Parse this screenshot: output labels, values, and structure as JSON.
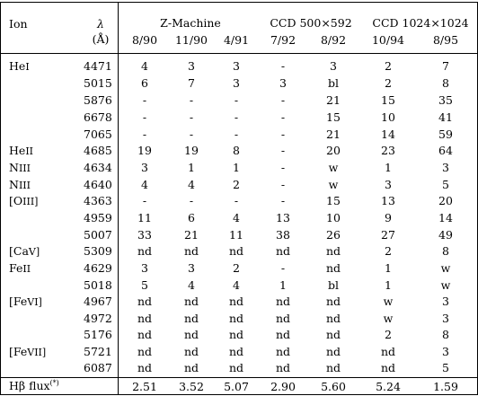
{
  "header": {
    "ion_label": "Ion",
    "lambda_symbol": "λ",
    "lambda_unit": "(Å)",
    "group_zmachine": "Z-Machine",
    "group_ccd500": "CCD 500×592",
    "group_ccd1024": "CCD 1024×1024",
    "dates": [
      "8/90",
      "11/90",
      "4/91",
      "7/92",
      "8/92",
      "10/94",
      "8/95"
    ]
  },
  "rows": [
    {
      "ion": "He",
      "ion_sc": "I",
      "wl": "4471",
      "vals": [
        "4",
        "3",
        "3",
        "-",
        "3",
        "2",
        "7"
      ]
    },
    {
      "ion": "",
      "ion_sc": "",
      "wl": "5015",
      "vals": [
        "6",
        "7",
        "3",
        "3",
        "bl",
        "2",
        "8"
      ]
    },
    {
      "ion": "",
      "ion_sc": "",
      "wl": "5876",
      "vals": [
        "-",
        "-",
        "-",
        "-",
        "21",
        "15",
        "35"
      ]
    },
    {
      "ion": "",
      "ion_sc": "",
      "wl": "6678",
      "vals": [
        "-",
        "-",
        "-",
        "-",
        "15",
        "10",
        "41"
      ]
    },
    {
      "ion": "",
      "ion_sc": "",
      "wl": "7065",
      "vals": [
        "-",
        "-",
        "-",
        "-",
        "21",
        "14",
        "59"
      ]
    },
    {
      "ion": "He",
      "ion_sc": "II",
      "wl": "4685",
      "vals": [
        "19",
        "19",
        "8",
        "-",
        "20",
        "23",
        "64"
      ]
    },
    {
      "ion": "N",
      "ion_sc": "III",
      "wl": "4634",
      "vals": [
        "3",
        "1",
        "1",
        "-",
        "w",
        "1",
        "3"
      ]
    },
    {
      "ion": "N",
      "ion_sc": "III",
      "wl": "4640",
      "vals": [
        "4",
        "4",
        "2",
        "-",
        "w",
        "3",
        "5"
      ]
    },
    {
      "ion": "[O",
      "ion_sc": "III]",
      "wl": "4363",
      "vals": [
        "-",
        "-",
        "-",
        "-",
        "15",
        "13",
        "20"
      ]
    },
    {
      "ion": "",
      "ion_sc": "",
      "wl": "4959",
      "vals": [
        "11",
        "6",
        "4",
        "13",
        "10",
        "9",
        "14"
      ]
    },
    {
      "ion": "",
      "ion_sc": "",
      "wl": "5007",
      "vals": [
        "33",
        "21",
        "11",
        "38",
        "26",
        "27",
        "49"
      ]
    },
    {
      "ion": "[Ca",
      "ion_sc": "V]",
      "wl": "5309",
      "vals": [
        "nd",
        "nd",
        "nd",
        "nd",
        "nd",
        "2",
        "8"
      ]
    },
    {
      "ion": "Fe",
      "ion_sc": "II",
      "wl": "4629",
      "vals": [
        "3",
        "3",
        "2",
        "-",
        "nd",
        "1",
        "w"
      ]
    },
    {
      "ion": "",
      "ion_sc": "",
      "wl": "5018",
      "vals": [
        "5",
        "4",
        "4",
        "1",
        "bl",
        "1",
        "w"
      ]
    },
    {
      "ion": "[Fe",
      "ion_sc": "VI]",
      "wl": "4967",
      "vals": [
        "nd",
        "nd",
        "nd",
        "nd",
        "nd",
        "w",
        "3"
      ]
    },
    {
      "ion": "",
      "ion_sc": "",
      "wl": "4972",
      "vals": [
        "nd",
        "nd",
        "nd",
        "nd",
        "nd",
        "w",
        "3"
      ]
    },
    {
      "ion": "",
      "ion_sc": "",
      "wl": "5176",
      "vals": [
        "nd",
        "nd",
        "nd",
        "nd",
        "nd",
        "2",
        "8"
      ]
    },
    {
      "ion": "[Fe",
      "ion_sc": "VII]",
      "wl": "5721",
      "vals": [
        "nd",
        "nd",
        "nd",
        "nd",
        "nd",
        "nd",
        "3"
      ]
    },
    {
      "ion": "",
      "ion_sc": "",
      "wl": "6087",
      "vals": [
        "nd",
        "nd",
        "nd",
        "nd",
        "nd",
        "nd",
        "5"
      ]
    }
  ],
  "footer": {
    "label": "Hβ flux",
    "label_sup": "(*)",
    "vals": [
      "2.51",
      "3.52",
      "5.07",
      "2.90",
      "5.60",
      "5.24",
      "1.59"
    ]
  }
}
